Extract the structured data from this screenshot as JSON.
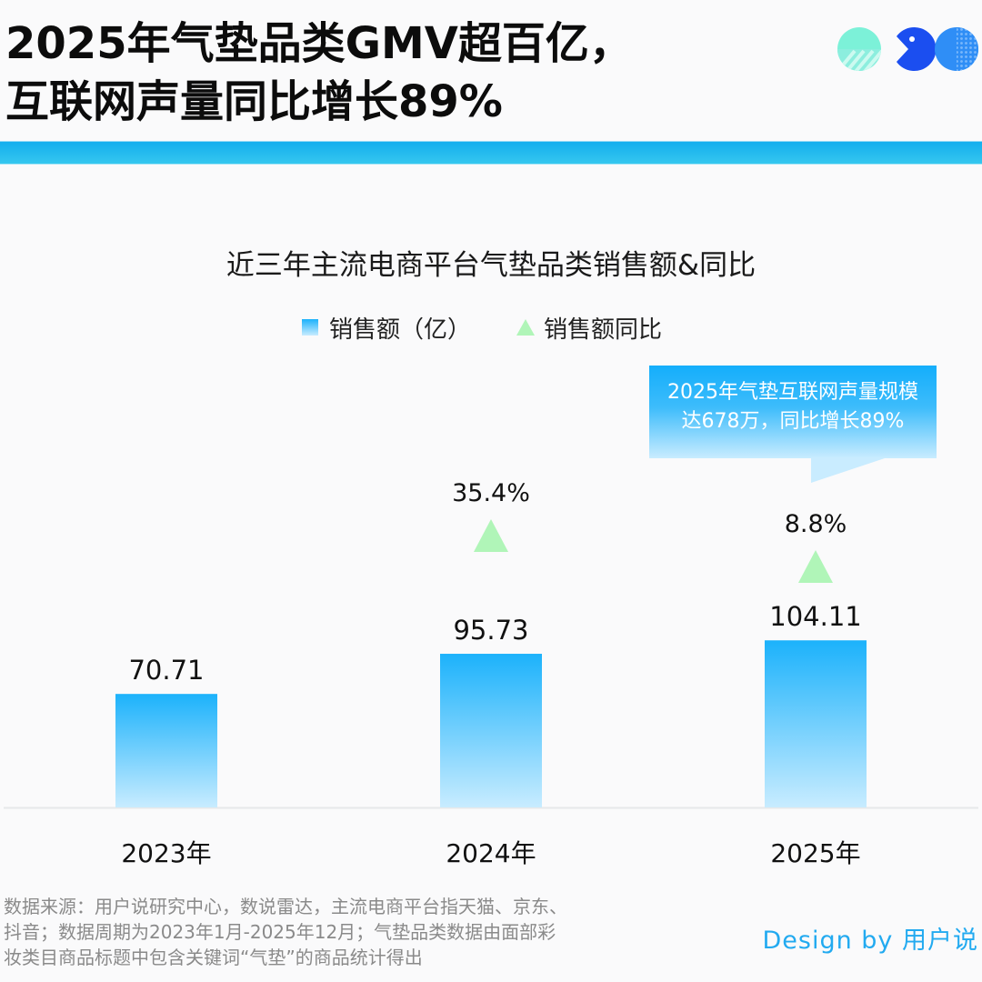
{
  "header": {
    "title_line1": "2025年气垫品类GMV超百亿，",
    "title_line2": "互联网声量同比增长89%",
    "logo_icons": [
      "striped-circle-icon",
      "pacman-icon",
      "dotted-circle-icon"
    ]
  },
  "colors": {
    "accent": "#14aeee",
    "bar_top": "#1cb2fb",
    "bar_bottom": "#c8ecff",
    "triangle": "#b0f5b8",
    "credit": "#22aaf0"
  },
  "chart_data": {
    "type": "bar",
    "title": "近三年主流电商平台气垫品类销售额&同比",
    "categories": [
      "2023年",
      "2024年",
      "2025年"
    ],
    "series": [
      {
        "name": "销售额（亿）",
        "type": "bar",
        "values": [
          70.71,
          95.73,
          104.11
        ],
        "labels": [
          "70.71",
          "95.73",
          "104.11"
        ]
      },
      {
        "name": "销售额同比",
        "type": "scatter",
        "marker": "triangle",
        "values": [
          null,
          35.4,
          8.8
        ],
        "labels": [
          "",
          "35.4%",
          "8.8%"
        ]
      }
    ],
    "xlabel": "",
    "ylabel": "",
    "ylim": [
      0,
      120
    ],
    "grid": false,
    "legend": "top-center",
    "annotations": [
      {
        "target": "2025年",
        "text_line1": "2025年气垫互联网声量规模",
        "text_line2": "达678万，同比增长89%"
      }
    ]
  },
  "footnote": {
    "line1": "数据来源：用户说研究中心，数说雷达，主流电商平台指天猫、京东、",
    "line2": "抖音；数据周期为2023年1月-2025年12月；气垫品类数据由面部彩",
    "line3": "妆类目商品标题中包含关键词“气垫”的商品统计得出"
  },
  "credit": "Design by 用户说"
}
